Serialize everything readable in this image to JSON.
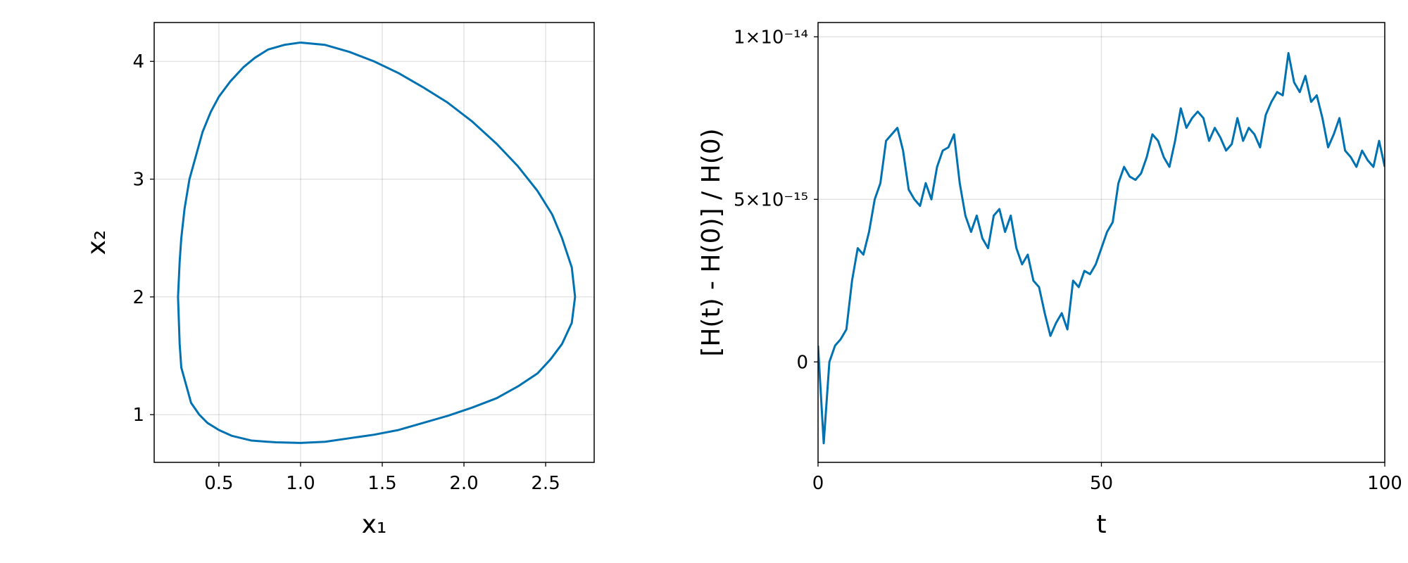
{
  "chart_data": [
    {
      "type": "line",
      "x_label": "x₁",
      "y_label": "x₂",
      "color": "#0072b2",
      "grid": true,
      "xlim": [
        0.104,
        2.797
      ],
      "ylim": [
        0.595,
        4.33
      ],
      "xticks": [
        0.5,
        {
          "value": 1,
          "label": "1.0"
        },
        1.5,
        {
          "value": 2,
          "label": "2.0"
        },
        2.5
      ],
      "yticks": [
        1,
        2,
        3,
        4
      ],
      "x": [
        1.0,
        1.15,
        1.3,
        1.45,
        1.6,
        1.75,
        1.9,
        2.05,
        2.2,
        2.33,
        2.45,
        2.54,
        2.6,
        2.66,
        2.68,
        2.66,
        2.6,
        2.53,
        2.45,
        2.33,
        2.2,
        2.05,
        1.9,
        1.75,
        1.6,
        1.45,
        1.3,
        1.15,
        1.0,
        0.85,
        0.7,
        0.58,
        0.5,
        0.43,
        0.38,
        0.33,
        0.3,
        0.27,
        0.26,
        0.25,
        0.26,
        0.27,
        0.29,
        0.32,
        0.36,
        0.4,
        0.45,
        0.5,
        0.57,
        0.65,
        0.72,
        0.8,
        0.9,
        1.0
      ],
      "values": [
        4.16,
        4.14,
        4.08,
        4.0,
        3.9,
        3.78,
        3.65,
        3.49,
        3.3,
        3.11,
        2.9,
        2.7,
        2.5,
        2.25,
        2.0,
        1.78,
        1.6,
        1.47,
        1.35,
        1.24,
        1.14,
        1.06,
        0.99,
        0.93,
        0.87,
        0.83,
        0.8,
        0.77,
        0.76,
        0.765,
        0.78,
        0.82,
        0.87,
        0.93,
        1.0,
        1.1,
        1.25,
        1.4,
        1.6,
        2.0,
        2.3,
        2.5,
        2.75,
        3.0,
        3.2,
        3.4,
        3.57,
        3.7,
        3.83,
        3.95,
        4.03,
        4.1,
        4.14,
        4.16
      ]
    },
    {
      "type": "line",
      "x_label": "t",
      "y_label": "[H(t) - H(0)] / H(0)",
      "color": "#0072b2",
      "grid": true,
      "xlim": [
        0,
        100
      ],
      "ylim": [
        -3.09e-15,
        1.044e-14
      ],
      "xticks": [
        0,
        50,
        100
      ],
      "yticks": [
        0,
        {
          "value": 5e-15,
          "label": "5×10⁻¹⁵"
        },
        {
          "value": 1e-14,
          "label": "1×10⁻¹⁴"
        }
      ],
      "x": [
        0,
        1,
        2,
        3,
        4,
        5,
        6,
        7,
        8,
        9,
        10,
        11,
        12,
        13,
        14,
        15,
        16,
        17,
        18,
        19,
        20,
        21,
        22,
        23,
        24,
        25,
        26,
        27,
        28,
        29,
        30,
        31,
        32,
        33,
        34,
        35,
        36,
        37,
        38,
        39,
        40,
        41,
        42,
        43,
        44,
        45,
        46,
        47,
        48,
        49,
        50,
        51,
        52,
        53,
        54,
        55,
        56,
        57,
        58,
        59,
        60,
        61,
        62,
        63,
        64,
        65,
        66,
        67,
        68,
        69,
        70,
        71,
        72,
        73,
        74,
        75,
        76,
        77,
        78,
        79,
        80,
        81,
        82,
        83,
        84,
        85,
        86,
        87,
        88,
        89,
        90,
        91,
        92,
        93,
        94,
        95,
        96,
        97,
        98,
        99,
        100
      ],
      "values": [
        5e-16,
        -2.5e-15,
        0,
        5e-16,
        7e-16,
        1e-15,
        2.5e-15,
        3.5e-15,
        3.3e-15,
        4e-15,
        5e-15,
        5.5e-15,
        6.8e-15,
        7e-15,
        7.2e-15,
        6.5e-15,
        5.3e-15,
        5e-15,
        4.8e-15,
        5.5e-15,
        5e-15,
        6e-15,
        6.5e-15,
        6.6e-15,
        7e-15,
        5.5e-15,
        4.5e-15,
        4e-15,
        4.5e-15,
        3.8e-15,
        3.5e-15,
        4.5e-15,
        4.7e-15,
        4e-15,
        4.5e-15,
        3.5e-15,
        3e-15,
        3.3e-15,
        2.5e-15,
        2.3e-15,
        1.5e-15,
        8e-16,
        1.2e-15,
        1.5e-15,
        1e-15,
        2.5e-15,
        2.3e-15,
        2.8e-15,
        2.7e-15,
        3e-15,
        3.5e-15,
        4e-15,
        4.3e-15,
        5.5e-15,
        6e-15,
        5.7e-15,
        5.6e-15,
        5.8e-15,
        6.3e-15,
        7e-15,
        6.8e-15,
        6.3e-15,
        6e-15,
        6.8e-15,
        7.8e-15,
        7.2e-15,
        7.5e-15,
        7.7e-15,
        7.5e-15,
        6.8e-15,
        7.2e-15,
        6.9e-15,
        6.5e-15,
        6.7e-15,
        7.5e-15,
        6.8e-15,
        7.2e-15,
        7e-15,
        6.6e-15,
        7.6e-15,
        8e-15,
        8.3e-15,
        8.2e-15,
        9.5e-15,
        8.6e-15,
        8.3e-15,
        8.8e-15,
        8e-15,
        8.2e-15,
        7.5e-15,
        6.6e-15,
        7e-15,
        7.5e-15,
        6.5e-15,
        6.3e-15,
        6e-15,
        6.5e-15,
        6.2e-15,
        6e-15,
        6.8e-15,
        6e-15
      ]
    }
  ]
}
